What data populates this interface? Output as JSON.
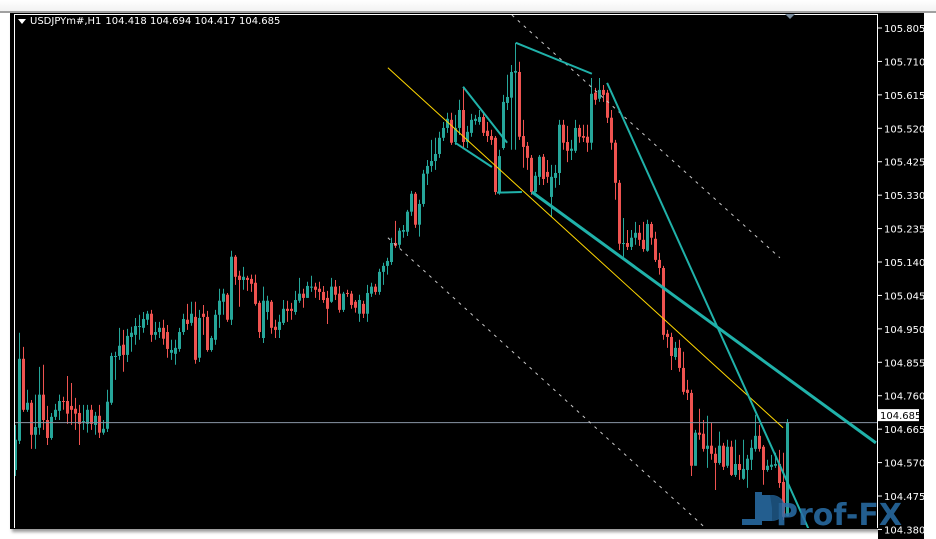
{
  "header": {
    "symbol": "USDJPYm#,H1",
    "ohlc_text": "104.418 104.694 104.417 104.685",
    "menu_icon": "triangle-down-icon"
  },
  "watermark": "Prof-FX",
  "colors": {
    "background": "#000000",
    "bull": "#26a69a",
    "bear": "#ef5350",
    "trendline": "#20b2aa",
    "yellow_line": "#ffd700",
    "channel_dotted": "#c8c8c8",
    "price_line": "#8a96a6",
    "axis_text": "#ffffff",
    "watermark": "#2a6fa8"
  },
  "chart_data": {
    "type": "candlestick",
    "title": "USDJPYm#,H1",
    "xlabel": "",
    "ylabel": "",
    "ylim": [
      104.384,
      105.845
    ],
    "grid": false,
    "current_price": "104.685",
    "y_ticks": [
      "105.805",
      "105.710",
      "105.615",
      "105.520",
      "105.425",
      "105.330",
      "105.235",
      "105.140",
      "105.045",
      "104.950",
      "104.855",
      "104.760",
      "104.665",
      "104.570",
      "104.475",
      "104.380"
    ],
    "ohlc_order": [
      "open",
      "high",
      "low",
      "close"
    ],
    "candles": [
      [
        104.549,
        104.677,
        104.532,
        104.635
      ],
      [
        104.632,
        104.939,
        104.623,
        104.865
      ],
      [
        104.865,
        104.899,
        104.714,
        104.72
      ],
      [
        104.72,
        104.777,
        104.714,
        104.74
      ],
      [
        104.74,
        104.748,
        104.609,
        104.649
      ],
      [
        104.649,
        104.763,
        104.609,
        104.671
      ],
      [
        104.669,
        104.842,
        104.649,
        104.763
      ],
      [
        104.763,
        104.848,
        104.663,
        104.691
      ],
      [
        104.691,
        104.731,
        104.62,
        104.64
      ],
      [
        104.64,
        104.711,
        104.635,
        104.7
      ],
      [
        104.7,
        104.737,
        104.691,
        104.72
      ],
      [
        104.717,
        104.763,
        104.691,
        104.745
      ],
      [
        104.745,
        104.757,
        104.72,
        104.743
      ],
      [
        104.745,
        104.816,
        104.68,
        104.709
      ],
      [
        104.731,
        104.796,
        104.677,
        104.72
      ],
      [
        104.723,
        104.754,
        104.663,
        104.709
      ],
      [
        104.711,
        104.734,
        104.62,
        104.68
      ],
      [
        104.686,
        104.734,
        104.663,
        104.688
      ],
      [
        104.68,
        104.734,
        104.655,
        104.72
      ],
      [
        104.72,
        104.734,
        104.663,
        104.68
      ],
      [
        104.677,
        104.714,
        104.649,
        104.703
      ],
      [
        104.703,
        104.734,
        104.64,
        104.655
      ],
      [
        104.655,
        104.691,
        104.649,
        104.666
      ],
      [
        104.666,
        104.777,
        104.657,
        104.743
      ],
      [
        104.74,
        104.882,
        104.734,
        104.873
      ],
      [
        104.87,
        104.885,
        104.805,
        104.873
      ],
      [
        104.873,
        104.953,
        104.862,
        104.902
      ],
      [
        104.905,
        104.947,
        104.828,
        104.876
      ],
      [
        104.876,
        104.95,
        104.856,
        104.93
      ],
      [
        104.927,
        104.956,
        104.885,
        104.939
      ],
      [
        104.933,
        104.981,
        104.905,
        104.958
      ],
      [
        104.956,
        104.99,
        104.919,
        104.958
      ],
      [
        104.953,
        104.998,
        104.939,
        104.978
      ],
      [
        104.976,
        105.001,
        104.961,
        104.993
      ],
      [
        104.993,
        105.004,
        104.913,
        104.933
      ],
      [
        104.933,
        104.97,
        104.919,
        104.941
      ],
      [
        104.941,
        104.97,
        104.924,
        104.953
      ],
      [
        104.953,
        104.976,
        104.905,
        104.922
      ],
      [
        104.941,
        104.961,
        104.868,
        104.893
      ],
      [
        104.882,
        104.919,
        104.862,
        104.89
      ],
      [
        104.879,
        104.919,
        104.848,
        104.896
      ],
      [
        104.893,
        104.953,
        104.885,
        104.941
      ],
      [
        104.941,
        104.993,
        104.933,
        104.978
      ],
      [
        104.976,
        105.021,
        104.947,
        104.964
      ],
      [
        104.967,
        105.027,
        104.959,
        104.993
      ],
      [
        104.984,
        105.027,
        104.851,
        104.862
      ],
      [
        104.868,
        105.004,
        104.856,
        104.981
      ],
      [
        104.993,
        105.018,
        104.933,
        104.984
      ],
      [
        104.984,
        105.001,
        104.885,
        104.89
      ],
      [
        104.89,
        104.93,
        104.885,
        104.924
      ],
      [
        104.919,
        105.004,
        104.905,
        104.99
      ],
      [
        104.99,
        105.064,
        104.953,
        105.03
      ],
      [
        105.027,
        105.064,
        104.99,
        105.05
      ],
      [
        105.047,
        105.052,
        104.97,
        104.976
      ],
      [
        104.976,
        105.172,
        104.961,
        105.155
      ],
      [
        105.155,
        105.16,
        105.075,
        105.098
      ],
      [
        105.101,
        105.115,
        105.013,
        105.089
      ],
      [
        105.089,
        105.126,
        105.061,
        105.098
      ],
      [
        105.095,
        105.101,
        105.058,
        105.089
      ],
      [
        105.092,
        105.104,
        105.055,
        105.078
      ],
      [
        105.081,
        105.104,
        105.016,
        105.021
      ],
      [
        105.024,
        105.03,
        104.924,
        104.941
      ],
      [
        104.924,
        105.07,
        104.91,
        105.03
      ],
      [
        104.998,
        105.044,
        104.976,
        105.03
      ],
      [
        105.027,
        105.032,
        104.936,
        104.953
      ],
      [
        104.956,
        104.976,
        104.924,
        104.947
      ],
      [
        104.947,
        104.99,
        104.924,
        104.97
      ],
      [
        104.967,
        105.032,
        104.961,
        105.007
      ],
      [
        105.007,
        105.03,
        104.97,
        105.001
      ],
      [
        105.007,
        105.024,
        104.976,
        105.001
      ],
      [
        104.998,
        105.058,
        104.99,
        105.032
      ],
      [
        105.03,
        105.095,
        105.024,
        105.05
      ],
      [
        105.05,
        105.064,
        105.01,
        105.038
      ],
      [
        105.038,
        105.084,
        105.038,
        105.072
      ],
      [
        105.067,
        105.101,
        105.055,
        105.07
      ],
      [
        105.07,
        105.081,
        105.038,
        105.061
      ],
      [
        105.064,
        105.084,
        105.032,
        105.055
      ],
      [
        105.055,
        105.072,
        105.024,
        105.032
      ],
      [
        105.038,
        105.058,
        104.964,
        105.007
      ],
      [
        105.027,
        105.095,
        105.024,
        105.07
      ],
      [
        105.07,
        105.089,
        105.032,
        105.047
      ],
      [
        105.05,
        105.072,
        104.996,
        105.004
      ],
      [
        105.004,
        105.055,
        104.998,
        105.05
      ],
      [
        105.052,
        105.061,
        105.041,
        105.05
      ],
      [
        105.05,
        105.058,
        105.007,
        105.018
      ],
      [
        105.027,
        105.032,
        104.996,
        105.01
      ],
      [
        104.993,
        105.047,
        104.97,
        105.032
      ],
      [
        105.021,
        105.03,
        104.981,
        104.993
      ],
      [
        104.993,
        105.075,
        104.97,
        105.052
      ],
      [
        105.05,
        105.081,
        105.041,
        105.07
      ],
      [
        105.07,
        105.078,
        105.047,
        105.055
      ],
      [
        105.055,
        105.121,
        105.047,
        105.112
      ],
      [
        105.112,
        105.138,
        105.075,
        105.129
      ],
      [
        105.129,
        105.152,
        105.104,
        105.143
      ],
      [
        105.14,
        105.209,
        105.132,
        105.194
      ],
      [
        105.194,
        105.257,
        105.18,
        105.186
      ],
      [
        105.189,
        105.237,
        105.18,
        105.229
      ],
      [
        105.226,
        105.245,
        105.209,
        105.231
      ],
      [
        105.226,
        105.288,
        105.214,
        105.283
      ],
      [
        105.283,
        105.342,
        105.271,
        105.334
      ],
      [
        105.334,
        105.339,
        105.237,
        105.246
      ],
      [
        105.246,
        105.317,
        105.212,
        105.305
      ],
      [
        105.305,
        105.402,
        105.297,
        105.391
      ],
      [
        105.391,
        105.43,
        105.359,
        105.413
      ],
      [
        105.413,
        105.487,
        105.396,
        105.427
      ],
      [
        105.427,
        105.493,
        105.402,
        105.447
      ],
      [
        105.447,
        105.51,
        105.436,
        105.493
      ],
      [
        105.493,
        105.538,
        105.484,
        105.521
      ],
      [
        105.521,
        105.564,
        105.507,
        105.547
      ],
      [
        105.544,
        105.564,
        105.473,
        105.479
      ],
      [
        105.481,
        105.558,
        105.473,
        105.521
      ],
      [
        105.521,
        105.601,
        105.501,
        105.572
      ],
      [
        105.572,
        105.638,
        105.464,
        105.481
      ],
      [
        105.481,
        105.527,
        105.464,
        105.51
      ],
      [
        105.507,
        105.561,
        105.496,
        105.544
      ],
      [
        105.541,
        105.558,
        105.53,
        105.547
      ],
      [
        105.538,
        105.572,
        105.53,
        105.552
      ],
      [
        105.552,
        105.567,
        105.498,
        105.507
      ],
      [
        105.513,
        105.538,
        105.481,
        105.498
      ],
      [
        105.498,
        105.516,
        105.473,
        105.487
      ],
      [
        105.493,
        105.498,
        105.331,
        105.339
      ],
      [
        105.339,
        105.459,
        105.331,
        105.441
      ],
      [
        105.464,
        105.615,
        105.459,
        105.595
      ],
      [
        105.592,
        105.672,
        105.572,
        105.609
      ],
      [
        105.607,
        105.7,
        105.459,
        105.68
      ],
      [
        105.678,
        105.763,
        105.459,
        105.683
      ],
      [
        105.68,
        105.709,
        105.487,
        105.496
      ],
      [
        105.498,
        105.544,
        105.408,
        105.467
      ],
      [
        105.47,
        105.481,
        105.402,
        105.436
      ],
      [
        105.436,
        105.444,
        105.331,
        105.339
      ],
      [
        105.339,
        105.396,
        105.337,
        105.385
      ],
      [
        105.382,
        105.444,
        105.359,
        105.439
      ],
      [
        105.439,
        105.447,
        105.359,
        105.376
      ],
      [
        105.396,
        105.43,
        105.365,
        105.382
      ],
      [
        105.325,
        105.416,
        105.268,
        105.382
      ],
      [
        105.379,
        105.416,
        105.351,
        105.393
      ],
      [
        105.393,
        105.544,
        105.359,
        105.53
      ],
      [
        105.53,
        105.544,
        105.459,
        105.479
      ],
      [
        105.481,
        105.527,
        105.424,
        105.456
      ],
      [
        105.456,
        105.487,
        105.43,
        105.462
      ],
      [
        105.456,
        105.544,
        105.45,
        105.521
      ],
      [
        105.521,
        105.53,
        105.479,
        105.496
      ],
      [
        105.498,
        105.53,
        105.481,
        105.493
      ],
      [
        105.496,
        105.53,
        105.453,
        105.479
      ],
      [
        105.479,
        105.663,
        105.459,
        105.618
      ],
      [
        105.621,
        105.635,
        105.587,
        105.601
      ],
      [
        105.604,
        105.663,
        105.595,
        105.629
      ],
      [
        105.629,
        105.643,
        105.595,
        105.615
      ],
      [
        105.621,
        105.629,
        105.535,
        105.55
      ],
      [
        105.55,
        105.572,
        105.459,
        105.479
      ],
      [
        105.479,
        105.487,
        105.317,
        105.365
      ],
      [
        105.365,
        105.373,
        105.174,
        105.192
      ],
      [
        105.192,
        105.265,
        105.155,
        105.194
      ],
      [
        105.194,
        105.231,
        105.174,
        105.183
      ],
      [
        105.183,
        105.231,
        105.174,
        105.209
      ],
      [
        105.209,
        105.254,
        105.189,
        105.223
      ],
      [
        105.223,
        105.245,
        105.186,
        105.203
      ],
      [
        105.203,
        105.254,
        105.169,
        105.177
      ],
      [
        105.172,
        105.26,
        105.169,
        105.248
      ],
      [
        105.248,
        105.254,
        105.189,
        105.209
      ],
      [
        105.206,
        105.226,
        105.14,
        105.146
      ],
      [
        105.146,
        105.166,
        105.104,
        105.123
      ],
      [
        105.123,
        105.129,
        104.919,
        104.933
      ],
      [
        104.936,
        104.947,
        104.896,
        104.927
      ],
      [
        104.927,
        104.939,
        104.833,
        104.873
      ],
      [
        104.87,
        104.913,
        104.862,
        104.896
      ],
      [
        104.896,
        104.919,
        104.828,
        104.839
      ],
      [
        104.839,
        104.885,
        104.763,
        104.771
      ],
      [
        104.777,
        104.805,
        104.748,
        104.768
      ],
      [
        104.768,
        104.777,
        104.532,
        104.561
      ],
      [
        104.561,
        104.663,
        104.561,
        104.655
      ],
      [
        104.655,
        104.723,
        104.635,
        104.649
      ],
      [
        104.652,
        104.691,
        104.601,
        104.609
      ],
      [
        104.609,
        104.703,
        104.555,
        104.618
      ],
      [
        104.618,
        104.683,
        104.578,
        104.595
      ],
      [
        104.595,
        104.612,
        104.492,
        104.569
      ],
      [
        104.569,
        104.658,
        104.564,
        104.618
      ],
      [
        104.618,
        104.626,
        104.549,
        104.558
      ],
      [
        104.561,
        104.635,
        104.555,
        104.615
      ],
      [
        104.615,
        104.632,
        104.532,
        104.535
      ],
      [
        104.535,
        104.635,
        104.529,
        104.566
      ],
      [
        104.566,
        104.592,
        104.521,
        104.549
      ],
      [
        104.524,
        104.635,
        104.521,
        104.552
      ],
      [
        104.549,
        104.592,
        104.498,
        104.581
      ],
      [
        104.578,
        104.635,
        104.549,
        104.612
      ],
      [
        104.609,
        104.706,
        104.601,
        104.646
      ],
      [
        104.646,
        104.677,
        104.601,
        104.609
      ],
      [
        104.615,
        104.62,
        104.507,
        104.549
      ],
      [
        104.549,
        104.578,
        104.544,
        104.561
      ],
      [
        104.558,
        104.592,
        104.549,
        104.564
      ],
      [
        104.561,
        104.598,
        104.555,
        104.566
      ],
      [
        104.566,
        104.606,
        104.498,
        104.512
      ],
      [
        104.515,
        104.598,
        104.407,
        104.416
      ],
      [
        104.418,
        104.694,
        104.417,
        104.685
      ]
    ],
    "objects": [
      {
        "kind": "trendline",
        "style": "yellow",
        "from": [
          93.1,
          105.692
        ],
        "to": [
          191.9,
          104.669
        ]
      },
      {
        "kind": "channel",
        "style": "dotted",
        "from": [
          124.1,
          105.842
        ],
        "to": [
          191.1,
          105.152
        ]
      },
      {
        "kind": "channel",
        "style": "dotted",
        "from": [
          93.1,
          105.209
        ],
        "to": [
          172.4,
          104.385
        ]
      },
      {
        "kind": "trendline",
        "style": "teal",
        "from": [
          111.9,
          105.638
        ],
        "to": [
          122.9,
          105.479
        ]
      },
      {
        "kind": "trendline",
        "style": "teal",
        "from": [
          109.9,
          105.479
        ],
        "to": [
          119.1,
          105.41
        ]
      },
      {
        "kind": "trendline",
        "style": "teal",
        "from": [
          120.4,
          105.337
        ],
        "to": [
          126.6,
          105.339
        ]
      },
      {
        "kind": "trendline",
        "style": "teal-thick",
        "from": [
          129.1,
          105.339
        ],
        "to": [
          215.1,
          104.626
        ]
      },
      {
        "kind": "trendline",
        "style": "teal",
        "from": [
          125.1,
          105.763
        ],
        "to": [
          144.1,
          105.675
        ]
      },
      {
        "kind": "trendline",
        "style": "teal",
        "from": [
          147.9,
          105.649
        ],
        "to": [
          198.6,
          104.373
        ]
      }
    ]
  }
}
